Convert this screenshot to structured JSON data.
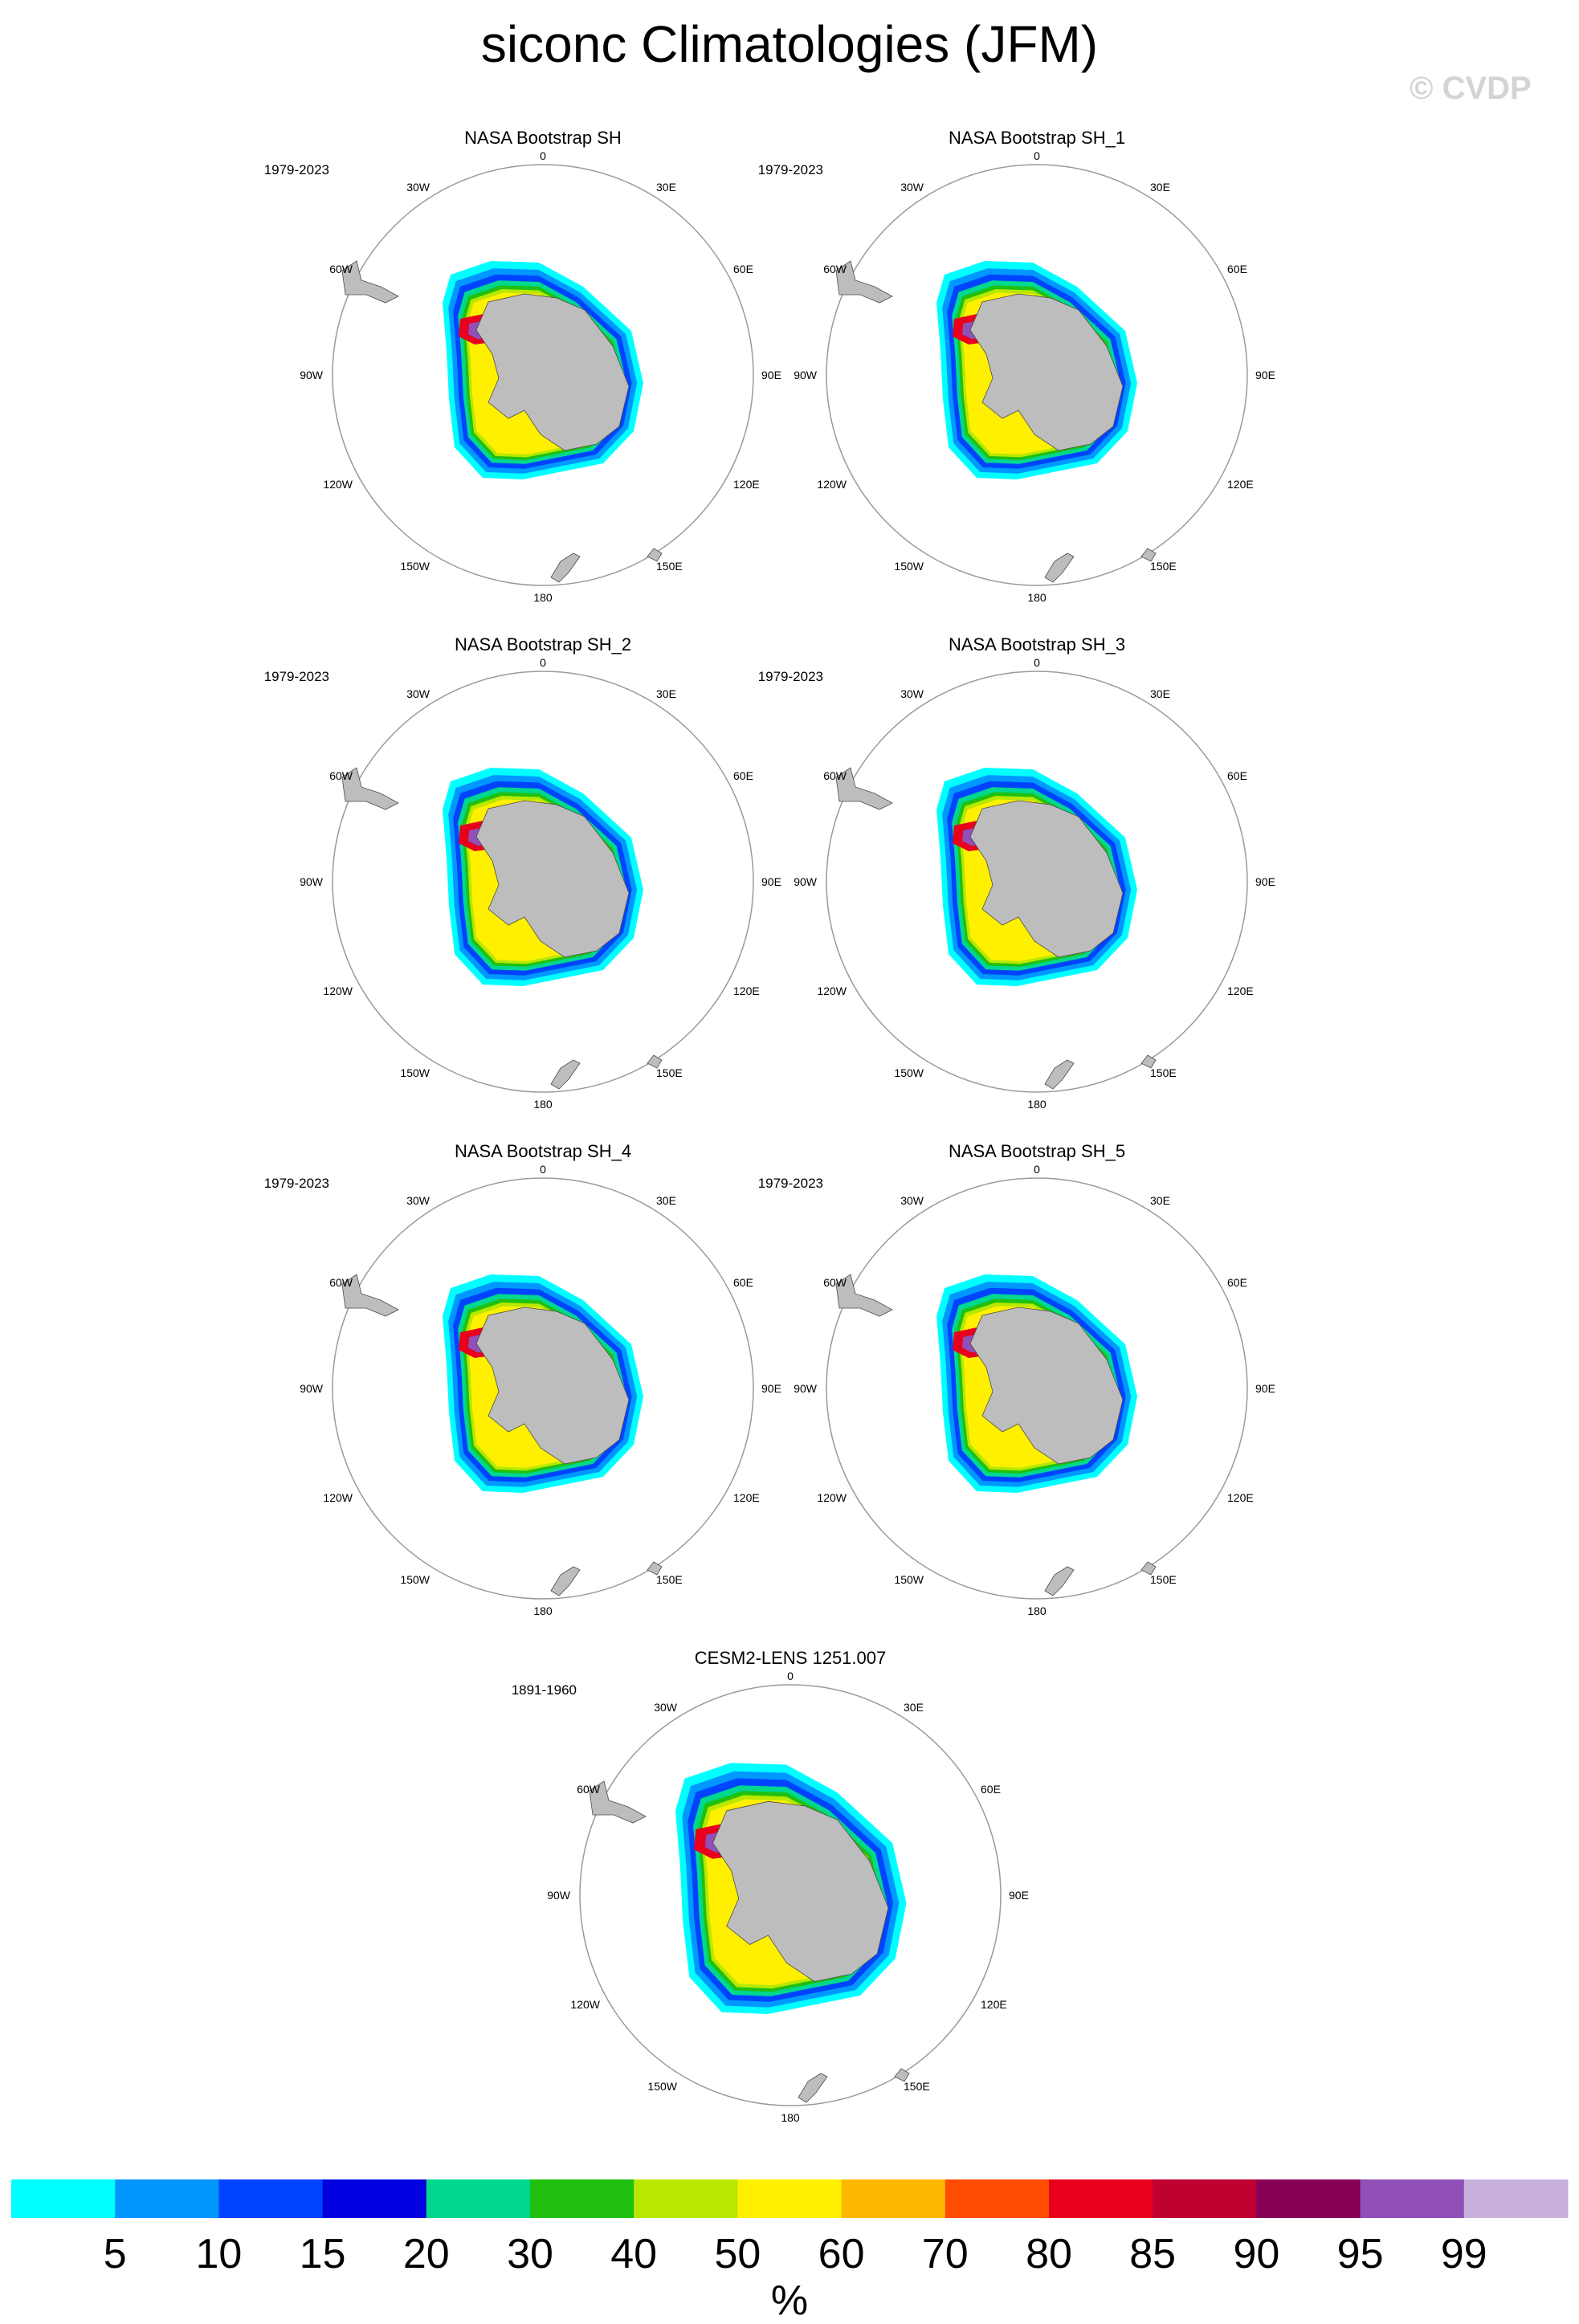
{
  "figure": {
    "title": "siconc Climatologies (JFM)",
    "watermark": "© CVDP"
  },
  "chart_data": [
    {
      "type": "heatmap",
      "projection": "south-polar-stereographic",
      "title": "NASA Bootstrap SH",
      "period": "1979-2023",
      "variable": "sea-ice concentration (%)",
      "variant": "obs"
    },
    {
      "type": "heatmap",
      "projection": "south-polar-stereographic",
      "title": "NASA Bootstrap SH_1",
      "period": "1979-2023",
      "variable": "sea-ice concentration (%)",
      "variant": "obs"
    },
    {
      "type": "heatmap",
      "projection": "south-polar-stereographic",
      "title": "NASA Bootstrap SH_2",
      "period": "1979-2023",
      "variable": "sea-ice concentration (%)",
      "variant": "obs"
    },
    {
      "type": "heatmap",
      "projection": "south-polar-stereographic",
      "title": "NASA Bootstrap SH_3",
      "period": "1979-2023",
      "variable": "sea-ice concentration (%)",
      "variant": "obs"
    },
    {
      "type": "heatmap",
      "projection": "south-polar-stereographic",
      "title": "NASA Bootstrap SH_4",
      "period": "1979-2023",
      "variable": "sea-ice concentration (%)",
      "variant": "obs"
    },
    {
      "type": "heatmap",
      "projection": "south-polar-stereographic",
      "title": "NASA Bootstrap SH_5",
      "period": "1979-2023",
      "variable": "sea-ice concentration (%)",
      "variant": "obs"
    },
    {
      "type": "heatmap",
      "projection": "south-polar-stereographic",
      "title": "CESM2-LENS 1251.007",
      "period": "1891-1960",
      "variable": "sea-ice concentration (%)",
      "variant": "model"
    }
  ],
  "map_labels": {
    "top": "0",
    "bottom": "180",
    "left": "90W",
    "right": "90E",
    "upper_left_inner": "30W",
    "upper_right_inner": "30E",
    "upper_left_outer": "60W",
    "upper_right_outer": "60E",
    "lower_left_outer": "120W",
    "lower_right_outer": "120E",
    "lower_left_inner": "150W",
    "lower_right_inner": "150E"
  },
  "colorbar": {
    "unit_label": "%",
    "tick_labels": [
      "5",
      "10",
      "15",
      "20",
      "30",
      "40",
      "50",
      "60",
      "70",
      "80",
      "85",
      "90",
      "95",
      "99"
    ],
    "colors": [
      "#00ffff",
      "#0098ff",
      "#0044ff",
      "#0000e0",
      "#00d890",
      "#20c010",
      "#b8e800",
      "#fff000",
      "#ffb800",
      "#ff4c00",
      "#e8001c",
      "#c00030",
      "#860058",
      "#9050b8",
      "#c8b0dc"
    ]
  },
  "colors": {
    "land": "#bdbdbd",
    "coast": "#4a4a4a",
    "map_border": "#9a9a9a",
    "watermark": "#d4d4d4"
  }
}
